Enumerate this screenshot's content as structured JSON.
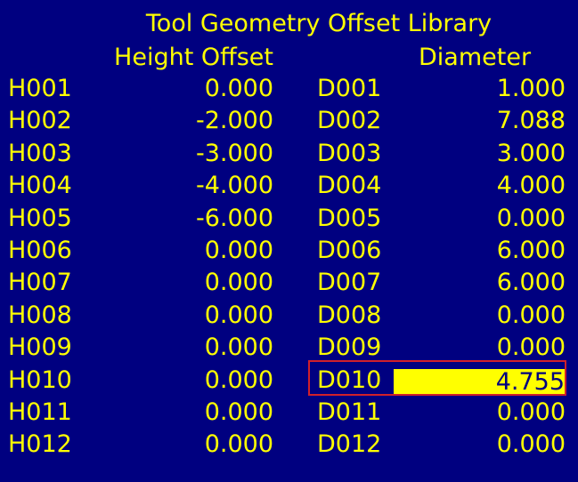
{
  "title": "Tool Geometry Offset Library",
  "headers": {
    "height": "Height Offset",
    "diameter": "Diameter"
  },
  "colors": {
    "background": "#000080",
    "text": "#ffff00",
    "selection_fill": "#ffff00",
    "selection_border": "#d0202a"
  },
  "selected_index": 9,
  "rows": [
    {
      "h_code": "H001",
      "h_value": "0.000",
      "d_code": "D001",
      "d_value": "1.000"
    },
    {
      "h_code": "H002",
      "h_value": "-2.000",
      "d_code": "D002",
      "d_value": "7.088"
    },
    {
      "h_code": "H003",
      "h_value": "-3.000",
      "d_code": "D003",
      "d_value": "3.000"
    },
    {
      "h_code": "H004",
      "h_value": "-4.000",
      "d_code": "D004",
      "d_value": "4.000"
    },
    {
      "h_code": "H005",
      "h_value": "-6.000",
      "d_code": "D005",
      "d_value": "0.000"
    },
    {
      "h_code": "H006",
      "h_value": "0.000",
      "d_code": "D006",
      "d_value": "6.000"
    },
    {
      "h_code": "H007",
      "h_value": "0.000",
      "d_code": "D007",
      "d_value": "6.000"
    },
    {
      "h_code": "H008",
      "h_value": "0.000",
      "d_code": "D008",
      "d_value": "0.000"
    },
    {
      "h_code": "H009",
      "h_value": "0.000",
      "d_code": "D009",
      "d_value": "0.000"
    },
    {
      "h_code": "H010",
      "h_value": "0.000",
      "d_code": "D010",
      "d_value": "4.755"
    },
    {
      "h_code": "H011",
      "h_value": "0.000",
      "d_code": "D011",
      "d_value": "0.000"
    },
    {
      "h_code": "H012",
      "h_value": "0.000",
      "d_code": "D012",
      "d_value": "0.000"
    }
  ]
}
